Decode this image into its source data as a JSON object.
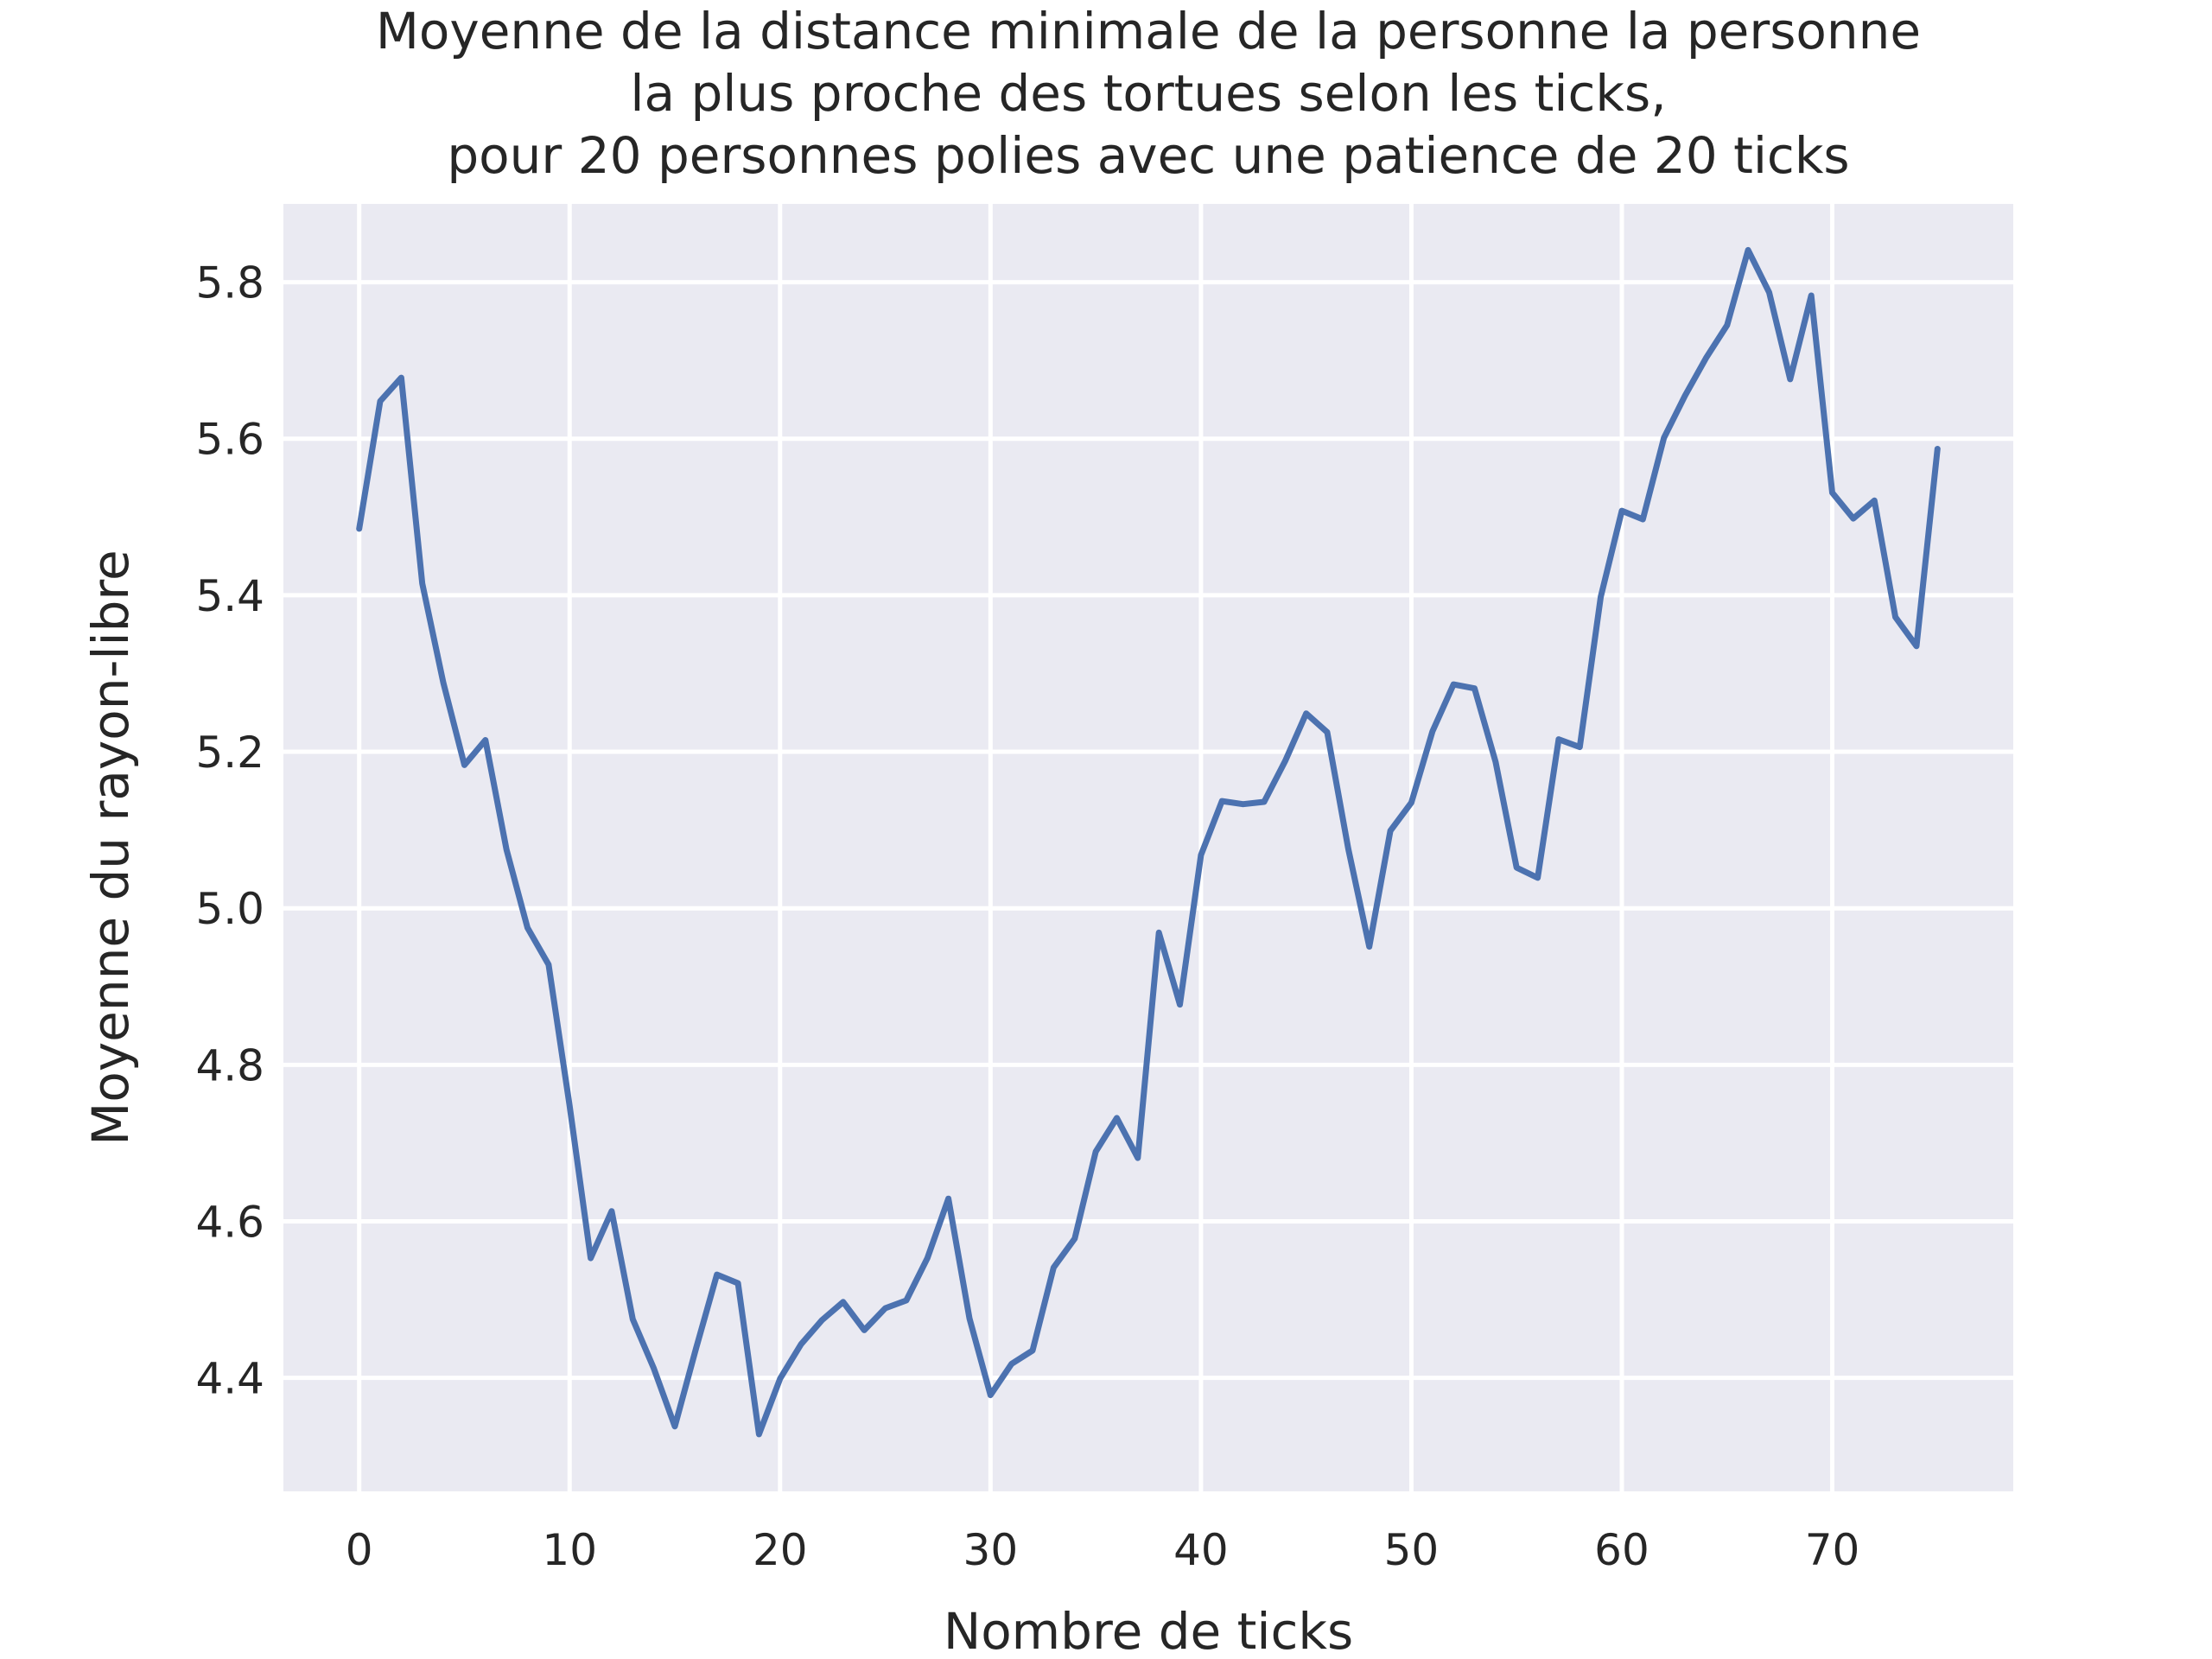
{
  "chart_data": {
    "type": "line",
    "title": [
      "Moyenne de la distance minimale de la personne la personne",
      "la plus proche des tortues selon les ticks,",
      "pour 20 personnes polies avec une patience de 20 ticks"
    ],
    "xlabel": "Nombre de ticks",
    "ylabel": "Moyenne du rayon-libre",
    "xlim": [
      -3.6,
      78.6
    ],
    "ylim": [
      4.255,
      5.9
    ],
    "xticks": [
      0,
      10,
      20,
      30,
      40,
      50,
      60,
      70
    ],
    "yticks": [
      4.4,
      4.6,
      4.8,
      5.0,
      5.2,
      5.4,
      5.6,
      5.8
    ],
    "xtick_labels": [
      "0",
      "10",
      "20",
      "30",
      "40",
      "50",
      "60",
      "70"
    ],
    "ytick_labels": [
      "4.4",
      "4.6",
      "4.8",
      "5.0",
      "5.2",
      "5.4",
      "5.6",
      "5.8"
    ],
    "grid": true,
    "background": "#eaeaf2",
    "series_color": "#4c72b0",
    "series": [
      {
        "x": [
          0,
          1,
          2,
          3,
          4,
          5,
          6,
          7,
          8,
          9,
          10,
          11,
          12,
          13,
          14,
          15,
          16,
          17,
          18,
          19,
          20,
          21,
          22,
          23,
          24,
          25,
          26,
          27,
          28,
          29,
          30,
          31,
          32,
          33,
          34,
          35,
          36,
          37,
          38,
          39,
          40,
          41,
          42,
          43,
          44,
          45,
          46,
          47,
          48,
          49,
          50,
          51,
          52,
          53,
          54,
          55,
          56,
          57,
          58,
          59,
          60,
          61,
          62,
          63,
          64,
          65,
          66,
          67,
          68,
          69,
          70,
          71,
          72,
          73,
          74,
          75
        ],
        "y": [
          5.485,
          5.648,
          5.678,
          5.415,
          5.288,
          5.183,
          5.215,
          5.075,
          4.975,
          4.928,
          4.748,
          4.553,
          4.613,
          4.475,
          4.412,
          4.338,
          4.437,
          4.532,
          4.521,
          4.328,
          4.399,
          4.443,
          4.474,
          4.497,
          4.461,
          4.489,
          4.499,
          4.553,
          4.629,
          4.476,
          4.378,
          4.418,
          4.435,
          4.541,
          4.578,
          4.689,
          4.732,
          4.681,
          4.969,
          4.877,
          5.068,
          5.137,
          5.133,
          5.136,
          5.188,
          5.249,
          5.225,
          5.076,
          4.951,
          5.099,
          5.135,
          5.226,
          5.286,
          5.281,
          5.187,
          5.052,
          5.039,
          5.216,
          5.206,
          5.398,
          5.508,
          5.497,
          5.601,
          5.655,
          5.703,
          5.745,
          5.841,
          5.787,
          5.676,
          5.783,
          5.531,
          5.498,
          5.521,
          5.372,
          5.335,
          5.587
        ]
      }
    ]
  }
}
